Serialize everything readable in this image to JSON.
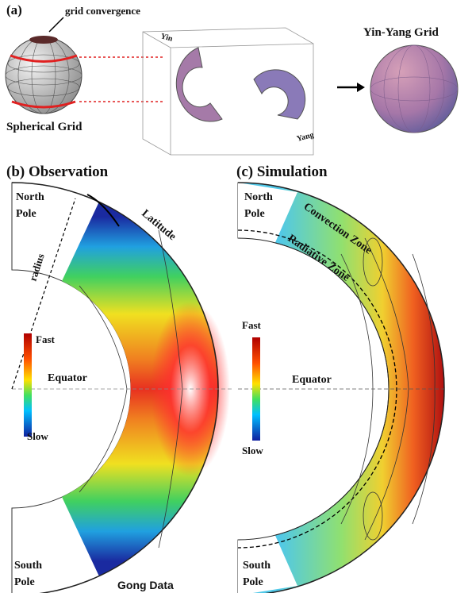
{
  "panel_a": {
    "label": "(a)",
    "annotation": "grid convergence",
    "left_caption": "Spherical Grid",
    "yin": "Yin",
    "yang": "Yang",
    "right_caption": "Yin-Yang Grid"
  },
  "panel_b": {
    "label": "(b) Observation",
    "north_pole": [
      "North",
      "Pole"
    ],
    "latitude": "Latitude",
    "radius": "radius",
    "fast": "Fast",
    "slow": "Slow",
    "equator": "Equator",
    "south_pole": [
      "South",
      "Pole"
    ],
    "source": "Gong Data"
  },
  "panel_c": {
    "label": "(c) Simulation",
    "north_pole": [
      "North",
      "Pole"
    ],
    "convection_zone": "Convection Zone",
    "radiative_zone": "Radiative Zone",
    "fast": "Fast",
    "slow": "Slow",
    "equator": "Equator",
    "south_pole": [
      "South",
      "Pole"
    ]
  }
}
